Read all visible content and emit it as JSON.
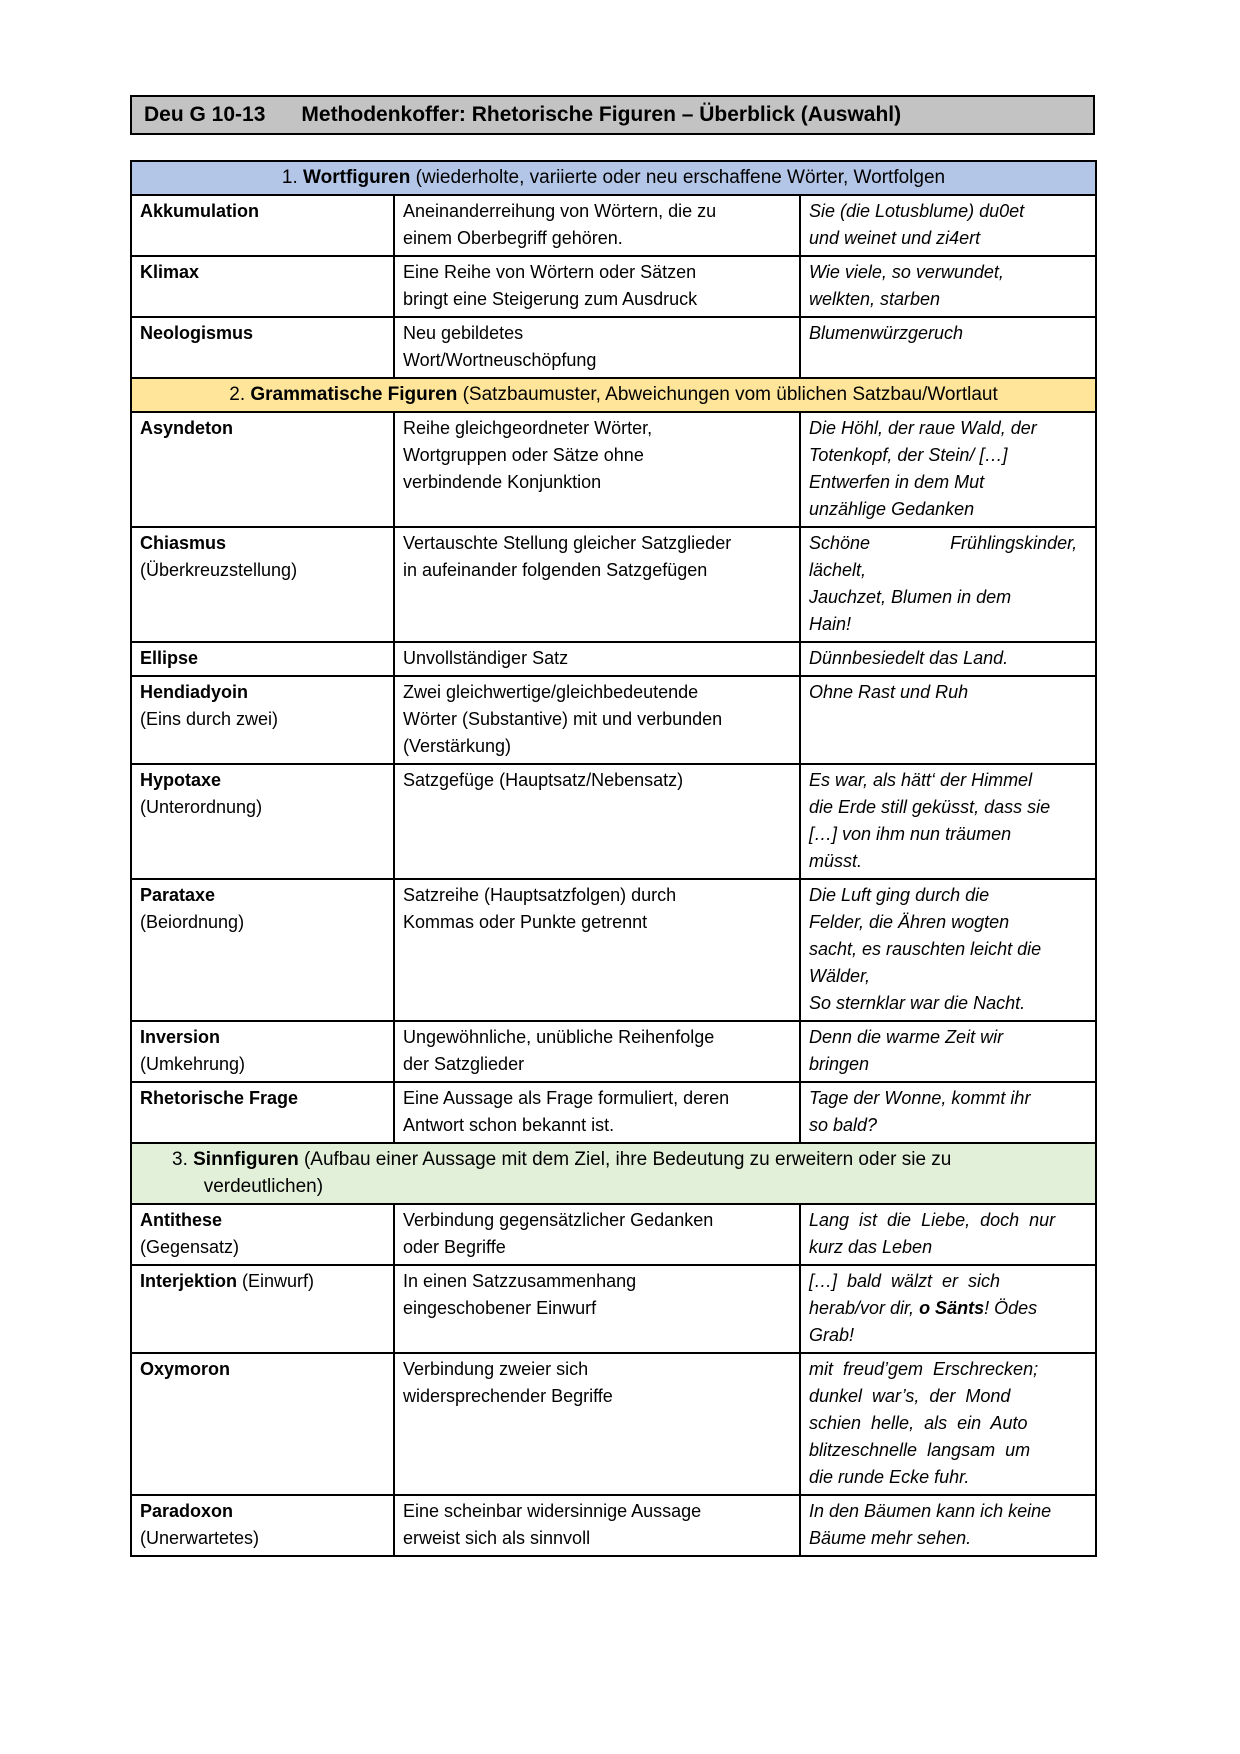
{
  "page": {
    "title_code": "Deu G 10-13",
    "title_text": "Methodenkoffer: Rhetorische Figuren – Überblick (Auswahl)"
  },
  "colors": {
    "title_bar": "#c3c3c3",
    "section1_bg": "#b4c6e7",
    "section2_bg": "#ffe599",
    "section3_bg": "#e2efd9"
  },
  "table": {
    "sections": [
      {
        "header": {
          "num": "1.",
          "bold": "Wortfiguren",
          "rest": " (wiederholte, variierte oder neu erschaffene Wörter, Wortfolgen"
        },
        "bg": "#b4c6e7",
        "align": "center",
        "rows": [
          {
            "term": "Akkumulation",
            "definition": "Aneinanderreihung von Wörtern, die zu\neinem Oberbegriff gehören.",
            "example": [
              {
                "t": "Sie (die Lotusblume) du0et\nund weinet und zi4ert",
                "b": false
              }
            ]
          },
          {
            "term": "Klimax",
            "definition": "Eine Reihe von Wörtern oder Sätzen\nbringt eine Steigerung zum Ausdruck",
            "example": [
              {
                "t": "Wie viele, so verwundet,\nwelkten, starben",
                "b": false
              }
            ]
          },
          {
            "term": "Neologismus",
            "definition": "Neu gebildetes\nWort/Wortneuschöpfung",
            "example": [
              {
                "t": "Blumenwürzgeruch",
                "b": false
              }
            ]
          }
        ]
      },
      {
        "header": {
          "num": "2.",
          "bold": "Grammatische Figuren",
          "rest": " (Satzbaumuster, Abweichungen vom üblichen Satzbau/Wortlaut"
        },
        "bg": "#ffe599",
        "align": "center",
        "rows": [
          {
            "term": "Asyndeton",
            "definition": "Reihe gleichgeordneter Wörter,\nWortgruppen oder Sätze ohne\nverbindende Konjunktion",
            "example": [
              {
                "t": "Die Höhl, der raue Wald, der\nTotenkopf, der Stein/ […]\nEntwerfen in dem Mut\nunzählige Gedanken",
                "b": false
              }
            ]
          },
          {
            "term": "Chiasmus",
            "sub": "(Überkreuzstellung)",
            "sub_bold": false,
            "definition": "Vertauschte Stellung gleicher Satzglieder\nin aufeinander folgenden Satzgefügen",
            "example": [
              {
                "t": "Schöne                Frühlingskinder,\nlächelt,\nJauchzet, Blumen in dem\nHain!",
                "b": false
              }
            ]
          },
          {
            "term": "Ellipse",
            "definition": "Unvollständiger Satz",
            "example": [
              {
                "t": "Dünnbesiedelt das Land.",
                "b": false
              }
            ]
          },
          {
            "term": "Hendiadyoin",
            "sub": "(Eins durch zwei)",
            "sub_bold": false,
            "definition": "Zwei gleichwertige/gleichbedeutende\nWörter (Substantive) mit und verbunden\n(Verstärkung)",
            "example": [
              {
                "t": "Ohne Rast und Ruh",
                "b": false
              }
            ]
          },
          {
            "term": "Hypotaxe",
            "sub": "(Unterordnung)",
            "sub_bold": false,
            "definition": "Satzgefüge (Hauptsatz/Nebensatz)",
            "example": [
              {
                "t": "Es war, als hätt‘ der Himmel\ndie Erde still geküsst, dass sie\n[…] von ihm nun träumen\nmüsst.",
                "b": false
              }
            ]
          },
          {
            "term": "Parataxe",
            "sub": "(Beiordnung)",
            "sub_bold": false,
            "definition": "Satzreihe (Hauptsatzfolgen) durch\nKommas oder Punkte getrennt",
            "example": [
              {
                "t": "Die Luft ging durch die\nFelder, die Ähren wogten\nsacht, es rauschten leicht die\nWälder,\nSo sternklar war die Nacht.",
                "b": false
              }
            ]
          },
          {
            "term": "Inversion",
            "sub": "(Umkehrung)",
            "sub_bold": true,
            "definition": "Ungewöhnliche, unübliche Reihenfolge\nder Satzglieder",
            "example": [
              {
                "t": "Denn die warme Zeit wir\nbringen",
                "b": false
              }
            ]
          },
          {
            "term": "Rhetorische Frage",
            "definition": "Eine Aussage als Frage formuliert, deren\nAntwort schon bekannt ist.",
            "example": [
              {
                "t": "Tage der Wonne, kommt ihr\nso bald?",
                "b": false
              }
            ]
          }
        ]
      },
      {
        "header": {
          "num": "3.",
          "bold": "Sinnfiguren",
          "rest": " (Aufbau einer Aussage mit dem Ziel, ihre Bedeutung zu erweitern oder sie zu\n      verdeutlichen)"
        },
        "bg": "#e2efd9",
        "align": "left",
        "rows": [
          {
            "term": "Antithese",
            "sub": "(Gegensatz)",
            "sub_bold": false,
            "definition": "Verbindung gegensätzlicher Gedanken\noder Begriffe",
            "example": [
              {
                "t": "Lang  ist  die  Liebe,  doch  nur\nkurz das Leben",
                "b": false
              }
            ]
          },
          {
            "term": "Interjektion",
            "note": "(Einwurf)",
            "definition": "In einen Satzzusammenhang\neingeschobener Einwurf",
            "example": [
              {
                "t": "[…]  bald  wälzt  er  sich\nherab/vor dir, ",
                "b": false
              },
              {
                "t": "o Sänts",
                "b": true
              },
              {
                "t": "! Ödes\nGrab!",
                "b": false
              }
            ]
          },
          {
            "term": "Oxymoron",
            "definition": "Verbindung zweier sich\nwidersprechender Begriffe",
            "example": [
              {
                "t": "mit  freud’gem  Erschrecken;\ndunkel  war’s,  der  Mond\nschien  helle,  als  ein  Auto\nblitzeschnelle  langsam  um\ndie runde Ecke fuhr.",
                "b": false
              }
            ]
          },
          {
            "term": "Paradoxon",
            "sub": "(Unerwartetes)",
            "sub_bold": false,
            "definition": "Eine scheinbar widersinnige Aussage\nerweist sich als sinnvoll",
            "example": [
              {
                "t": "In den Bäumen kann ich keine\nBäume mehr sehen.",
                "b": false
              }
            ]
          }
        ]
      }
    ]
  }
}
